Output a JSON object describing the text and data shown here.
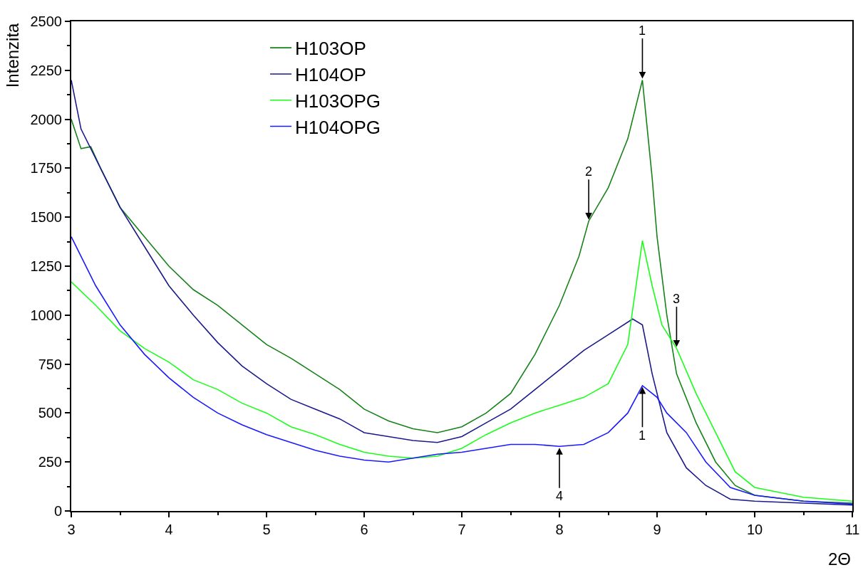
{
  "chart_data": {
    "type": "line",
    "xlabel": "2Θ",
    "ylabel": "Intenzita",
    "xlim": [
      3,
      11
    ],
    "xticks": [
      3,
      4,
      5,
      6,
      7,
      8,
      9,
      10,
      11
    ],
    "ylim": [
      0,
      2500
    ],
    "yticks": [
      0,
      250,
      500,
      750,
      1000,
      1250,
      1500,
      1750,
      2000,
      2250,
      2500
    ],
    "grid": false,
    "legend": "top left",
    "marker": "none",
    "line_style": "solid",
    "series": [
      {
        "name": "H103OP",
        "color": "#17821a",
        "x": [
          3,
          3.1,
          3.2,
          3.3,
          3.5,
          3.75,
          4,
          4.25,
          4.5,
          4.75,
          5,
          5.25,
          5.5,
          5.75,
          6,
          6.25,
          6.5,
          6.75,
          7,
          7.25,
          7.5,
          7.75,
          8,
          8.2,
          8.3,
          8.5,
          8.7,
          8.85,
          8.95,
          9.0,
          9.1,
          9.2,
          9.4,
          9.6,
          9.8,
          10,
          10.5,
          11
        ],
        "values": [
          2000,
          1850,
          1860,
          1750,
          1550,
          1400,
          1250,
          1130,
          1050,
          950,
          850,
          780,
          700,
          620,
          520,
          460,
          420,
          400,
          430,
          500,
          600,
          800,
          1050,
          1300,
          1480,
          1650,
          1900,
          2200,
          1700,
          1400,
          1000,
          700,
          450,
          250,
          130,
          80,
          50,
          40
        ]
      },
      {
        "name": "H104OP",
        "color": "#1a1a8c",
        "x": [
          3,
          3.1,
          3.25,
          3.5,
          3.75,
          4,
          4.25,
          4.5,
          4.75,
          5,
          5.25,
          5.5,
          5.75,
          6,
          6.25,
          6.5,
          6.75,
          7,
          7.25,
          7.5,
          7.75,
          8,
          8.25,
          8.5,
          8.75,
          8.85,
          8.95,
          9.1,
          9.3,
          9.5,
          9.75,
          10,
          10.5,
          11
        ],
        "values": [
          2200,
          1950,
          1800,
          1550,
          1350,
          1150,
          1000,
          860,
          740,
          650,
          570,
          520,
          470,
          400,
          380,
          360,
          350,
          380,
          450,
          520,
          620,
          720,
          820,
          900,
          980,
          950,
          700,
          400,
          220,
          130,
          60,
          50,
          40,
          30
        ]
      },
      {
        "name": "H103OPG",
        "color": "#1aff1a",
        "x": [
          3,
          3.25,
          3.5,
          3.75,
          4,
          4.25,
          4.5,
          4.75,
          5,
          5.25,
          5.5,
          5.75,
          6,
          6.25,
          6.5,
          6.75,
          7,
          7.25,
          7.5,
          7.75,
          8,
          8.25,
          8.5,
          8.7,
          8.85,
          8.95,
          9.05,
          9.2,
          9.4,
          9.6,
          9.8,
          10,
          10.5,
          11
        ],
        "values": [
          1170,
          1050,
          920,
          830,
          760,
          670,
          620,
          550,
          500,
          430,
          390,
          340,
          300,
          280,
          270,
          280,
          320,
          390,
          450,
          500,
          540,
          580,
          650,
          850,
          1380,
          1150,
          950,
          830,
          600,
          400,
          200,
          120,
          70,
          50
        ]
      },
      {
        "name": "H104OPG",
        "color": "#1a1aff",
        "x": [
          3,
          3.25,
          3.5,
          3.75,
          4,
          4.25,
          4.5,
          4.75,
          5,
          5.25,
          5.5,
          5.75,
          6,
          6.25,
          6.5,
          6.75,
          7,
          7.25,
          7.5,
          7.75,
          8,
          8.25,
          8.5,
          8.7,
          8.85,
          9,
          9.1,
          9.3,
          9.5,
          9.75,
          10,
          10.5,
          11
        ],
        "values": [
          1400,
          1150,
          950,
          800,
          680,
          580,
          500,
          440,
          390,
          350,
          310,
          280,
          260,
          250,
          270,
          290,
          300,
          320,
          340,
          340,
          330,
          340,
          400,
          500,
          640,
          580,
          500,
          400,
          250,
          120,
          80,
          50,
          35
        ]
      }
    ],
    "annotations": [
      {
        "text": "1",
        "x": 8.85,
        "y": 2200
      },
      {
        "text": "2",
        "x": 8.3,
        "y": 1480
      },
      {
        "text": "3",
        "x": 9.2,
        "y": 830
      },
      {
        "text": "1",
        "x": 8.85,
        "y": 640
      },
      {
        "text": "4",
        "x": 8.0,
        "y": 330
      }
    ]
  }
}
